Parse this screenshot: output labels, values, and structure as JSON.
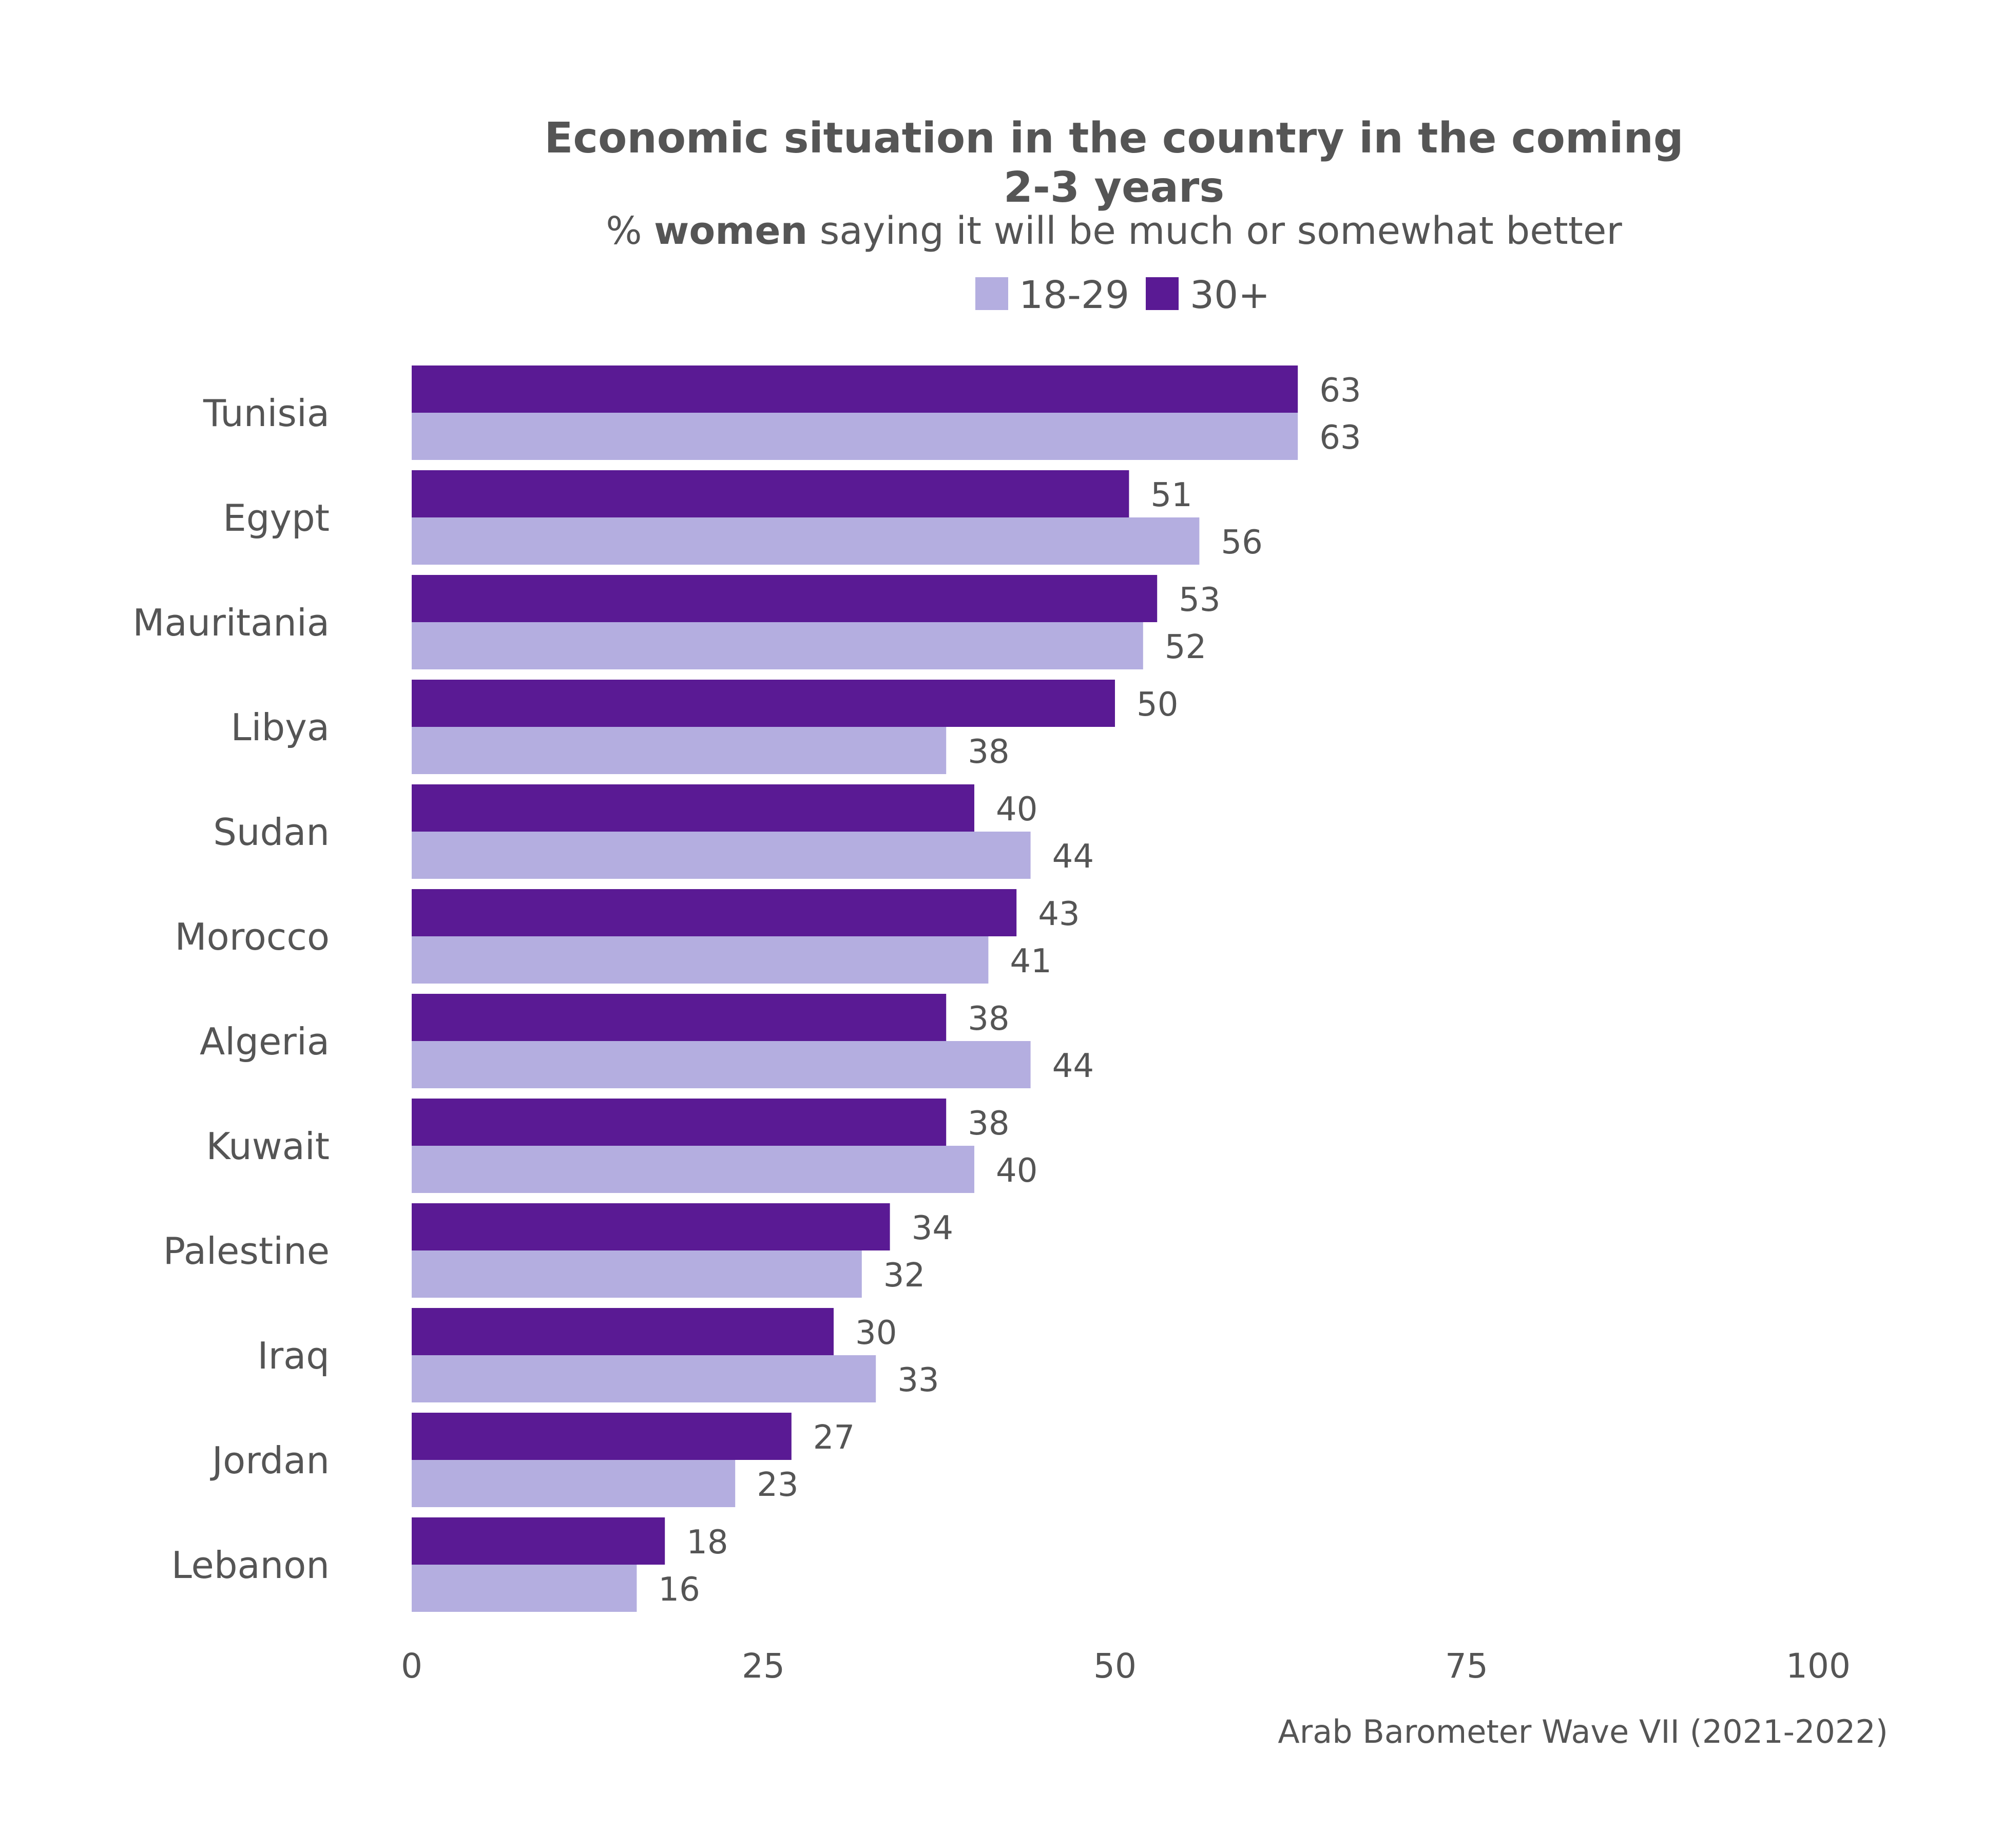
{
  "chart_data": {
    "type": "bar",
    "orientation": "horizontal",
    "title_line1": "Economic situation in the country in the coming",
    "title_line2": "2-3 years",
    "subtitle_prefix": "% ",
    "subtitle_bold": "women",
    "subtitle_suffix": " saying it will be much or somewhat better",
    "source": "Arab Barometer Wave VII (2021-2022)",
    "legend": [
      {
        "name": "18-29",
        "color": "#b4aee0"
      },
      {
        "name": "30+",
        "color": "#5a1a94"
      }
    ],
    "legend_position": "top-center",
    "categories": [
      "Tunisia",
      "Egypt",
      "Mauritania",
      "Libya",
      "Sudan",
      "Morocco",
      "Algeria",
      "Kuwait",
      "Palestine",
      "Iraq",
      "Jordan",
      "Lebanon"
    ],
    "series": [
      {
        "name": "30+",
        "color": "#5a1a94",
        "values": [
          63,
          51,
          53,
          50,
          40,
          43,
          38,
          38,
          34,
          30,
          27,
          18
        ]
      },
      {
        "name": "18-29",
        "color": "#b4aee0",
        "values": [
          63,
          56,
          52,
          38,
          44,
          41,
          44,
          40,
          32,
          33,
          23,
          16
        ]
      }
    ],
    "xlim": [
      0,
      100
    ],
    "xticks": [
      0,
      25,
      50,
      75,
      100
    ],
    "grid": false,
    "text_color": "#555555"
  }
}
